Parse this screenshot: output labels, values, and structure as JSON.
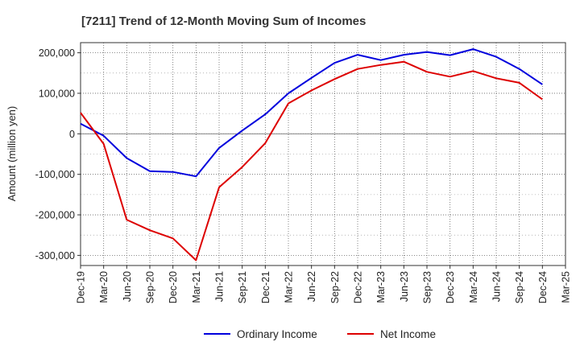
{
  "chart_data": {
    "type": "line",
    "title": "[7211]  Trend of 12-Month Moving Sum of Incomes",
    "ylabel": "Amount (million yen)",
    "xlabel": "",
    "ylim": [
      -325000,
      225000
    ],
    "yticks": [
      200000,
      100000,
      0,
      -100000,
      -200000,
      -300000
    ],
    "ytick_labels": [
      "200,000",
      "100,000",
      "0",
      "-100,000",
      "-200,000",
      "-300,000"
    ],
    "x_tick_labels": [
      "Dec-19",
      "Mar-20",
      "Jun-20",
      "Sep-20",
      "Dec-20",
      "Mar-21",
      "Jun-21",
      "Sep-21",
      "Dec-21",
      "Mar-22",
      "Jun-22",
      "Sep-22",
      "Dec-22",
      "Mar-23",
      "Jun-23",
      "Sep-23",
      "Dec-23",
      "Mar-24",
      "Jun-24",
      "Sep-24",
      "Dec-24",
      "Mar-25"
    ],
    "grid": true,
    "legend_position": "bottom-center",
    "series": [
      {
        "name": "Ordinary Income",
        "color": "#0000dd",
        "values": [
          25000,
          -5000,
          -60000,
          -92000,
          -94000,
          -105000,
          -35000,
          8000,
          48000,
          100000,
          138000,
          175000,
          195000,
          182000,
          195000,
          202000,
          194000,
          209000,
          190000,
          160000,
          122000
        ]
      },
      {
        "name": "Net Income",
        "color": "#dd0000",
        "values": [
          52000,
          -25000,
          -212000,
          -238000,
          -258000,
          -312000,
          -132000,
          -82000,
          -23000,
          75000,
          107000,
          135000,
          160000,
          170000,
          178000,
          153000,
          141000,
          155000,
          137000,
          126000,
          85000
        ]
      }
    ]
  }
}
